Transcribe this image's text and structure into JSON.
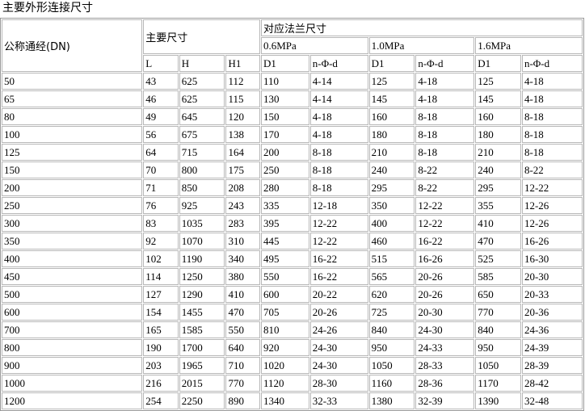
{
  "title": "主要外形连接尺寸",
  "header": {
    "dn": "公称通经(DN)",
    "main_dims": "主要尺寸",
    "flange_dims": "对应法兰尺寸",
    "pressures": [
      "0.6MPa",
      "1.0MPa",
      "1.6MPa"
    ],
    "columns": [
      "L",
      "H",
      "H1",
      "D1",
      "n-Φ-d",
      "D1",
      "n-Φ-d",
      "D1",
      "n-Φ-d"
    ]
  },
  "rows": [
    [
      "50",
      "43",
      "625",
      "112",
      "110",
      "4-14",
      "125",
      "4-18",
      "125",
      "4-18"
    ],
    [
      "65",
      "46",
      "625",
      "115",
      "130",
      "4-14",
      "145",
      "4-18",
      "145",
      "4-18"
    ],
    [
      "80",
      "49",
      "645",
      "120",
      "150",
      "4-18",
      "160",
      "8-18",
      "160",
      "8-18"
    ],
    [
      "100",
      "56",
      "675",
      "138",
      "170",
      "4-18",
      "180",
      "8-18",
      "180",
      "8-18"
    ],
    [
      "125",
      "64",
      "715",
      "164",
      "200",
      "8-18",
      "210",
      "8-18",
      "210",
      "8-18"
    ],
    [
      "150",
      "70",
      "800",
      "175",
      "250",
      "8-18",
      "240",
      "8-22",
      "240",
      "8-22"
    ],
    [
      "200",
      "71",
      "850",
      "208",
      "280",
      "8-18",
      "295",
      "8-22",
      "295",
      "12-22"
    ],
    [
      "250",
      "76",
      "925",
      "243",
      "335",
      "12-18",
      "350",
      "12-22",
      "355",
      "12-26"
    ],
    [
      "300",
      "83",
      "1035",
      "283",
      "395",
      "12-22",
      "400",
      "12-22",
      "410",
      "12-26"
    ],
    [
      "350",
      "92",
      "1070",
      "310",
      "445",
      "12-22",
      "460",
      "16-22",
      "470",
      "16-26"
    ],
    [
      "400",
      "102",
      "1190",
      "340",
      "495",
      "16-22",
      "515",
      "16-26",
      "525",
      "16-30"
    ],
    [
      "450",
      "114",
      "1250",
      "380",
      "550",
      "16-22",
      "565",
      "20-26",
      "585",
      "20-30"
    ],
    [
      "500",
      "127",
      "1290",
      "410",
      "600",
      "20-22",
      "620",
      "20-26",
      "650",
      "20-33"
    ],
    [
      "600",
      "154",
      "1455",
      "470",
      "705",
      "20-26",
      "725",
      "20-30",
      "770",
      "20-36"
    ],
    [
      "700",
      "165",
      "1585",
      "550",
      "810",
      "24-26",
      "840",
      "24-30",
      "840",
      "24-36"
    ],
    [
      "800",
      "190",
      "1700",
      "640",
      "920",
      "24-30",
      "950",
      "24-33",
      "950",
      "24-39"
    ],
    [
      "900",
      "203",
      "1965",
      "710",
      "1020",
      "24-30",
      "1050",
      "28-33",
      "1050",
      "28-39"
    ],
    [
      "1000",
      "216",
      "2015",
      "770",
      "1120",
      "28-30",
      "1160",
      "28-36",
      "1170",
      "28-42"
    ],
    [
      "1200",
      "254",
      "2250",
      "890",
      "1340",
      "32-33",
      "1380",
      "32-39",
      "1390",
      "32-48"
    ]
  ]
}
